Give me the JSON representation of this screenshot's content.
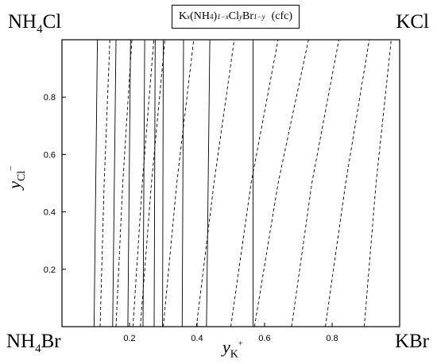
{
  "chart_data": {
    "type": "line",
    "title": "K(NH4)Cl Br (cfc)",
    "title_parts": {
      "k": "K",
      "x": "x",
      "nh4": "(NH",
      "four": "4",
      "close": ")",
      "oneminusx": "1−x",
      "cl": "Cl",
      "y": "y",
      "br": "Br",
      "oneminusy": "1−y",
      "cfc": "(cfc)"
    },
    "corners": {
      "top_left": {
        "main": "NH",
        "sub": "4",
        "rest": "Cl"
      },
      "top_right": {
        "main": "KCl"
      },
      "bottom_left": {
        "main": "NH",
        "sub": "4",
        "rest": "Br"
      },
      "bottom_right": {
        "main": "KBr"
      }
    },
    "xlabel": {
      "main": "y",
      "sub": "K",
      "sup": "+"
    },
    "ylabel": {
      "main": "y",
      "sub": "Cl",
      "sup": "−"
    },
    "xlim": [
      0,
      1
    ],
    "ylim": [
      0,
      1
    ],
    "x_ticks": [
      "0.2",
      "0.4",
      "0.6",
      "0.8"
    ],
    "y_ticks": [
      "0.2",
      "0.4",
      "0.6",
      "0.8"
    ],
    "x_tick_values": [
      0.2,
      0.4,
      0.6,
      0.8
    ],
    "y_tick_values": [
      0.2,
      0.4,
      0.6,
      0.8
    ],
    "grid": false,
    "series": [
      {
        "style": "solid",
        "points": [
          [
            0.095,
            0
          ],
          [
            0.105,
            1
          ]
        ]
      },
      {
        "style": "solid",
        "points": [
          [
            0.15,
            0
          ],
          [
            0.16,
            1
          ]
        ]
      },
      {
        "style": "solid",
        "points": [
          [
            0.195,
            0
          ],
          [
            0.203,
            1
          ]
        ]
      },
      {
        "style": "solid",
        "points": [
          [
            0.24,
            0
          ],
          [
            0.245,
            1
          ]
        ]
      },
      {
        "style": "solid",
        "points": [
          [
            0.273,
            0
          ],
          [
            0.276,
            1
          ]
        ]
      },
      {
        "style": "solid",
        "points": [
          [
            0.298,
            0
          ],
          [
            0.3,
            1
          ]
        ]
      },
      {
        "style": "solid",
        "points": [
          [
            0.356,
            0
          ],
          [
            0.36,
            1
          ]
        ]
      },
      {
        "style": "solid",
        "points": [
          [
            0.428,
            0
          ],
          [
            0.438,
            1
          ]
        ]
      },
      {
        "style": "solid",
        "points": [
          [
            0.566,
            0
          ],
          [
            0.566,
            1
          ]
        ]
      },
      {
        "style": "dashed",
        "points": [
          [
            0.113,
            0
          ],
          [
            0.125,
            0.5
          ],
          [
            0.142,
            1
          ]
        ]
      },
      {
        "style": "dashed",
        "points": [
          [
            0.16,
            0
          ],
          [
            0.18,
            0.5
          ],
          [
            0.207,
            1
          ]
        ]
      },
      {
        "style": "dashed",
        "points": [
          [
            0.21,
            0
          ],
          [
            0.238,
            0.5
          ],
          [
            0.272,
            1
          ]
        ]
      },
      {
        "style": "dashed",
        "points": [
          [
            0.232,
            0
          ],
          [
            0.265,
            0.5
          ],
          [
            0.305,
            1
          ]
        ]
      },
      {
        "style": "dashed",
        "points": [
          [
            0.3,
            0
          ],
          [
            0.34,
            0.5
          ],
          [
            0.39,
            1
          ]
        ]
      },
      {
        "style": "dashed",
        "points": [
          [
            0.398,
            0
          ],
          [
            0.45,
            0.5
          ],
          [
            0.51,
            1
          ]
        ]
      },
      {
        "style": "dashed",
        "points": [
          [
            0.5,
            0
          ],
          [
            0.56,
            0.5
          ],
          [
            0.64,
            1
          ]
        ]
      },
      {
        "style": "dashed",
        "points": [
          [
            0.57,
            0
          ],
          [
            0.64,
            0.5
          ],
          [
            0.73,
            1
          ]
        ]
      },
      {
        "style": "dashed",
        "points": [
          [
            0.68,
            0
          ],
          [
            0.74,
            0.5
          ],
          [
            0.82,
            1
          ]
        ]
      },
      {
        "style": "dashed",
        "points": [
          [
            0.78,
            0
          ],
          [
            0.84,
            0.5
          ],
          [
            0.91,
            1
          ]
        ]
      },
      {
        "style": "dashed",
        "points": [
          [
            0.895,
            0
          ],
          [
            0.93,
            0.5
          ],
          [
            0.975,
            1
          ]
        ]
      }
    ]
  }
}
